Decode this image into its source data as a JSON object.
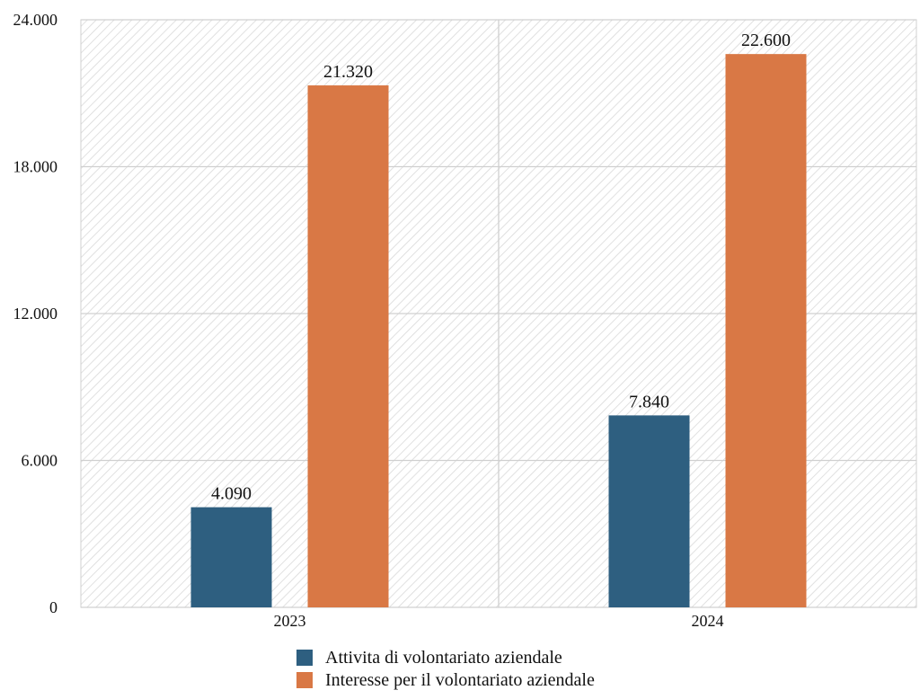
{
  "chart_data": {
    "type": "bar",
    "categories": [
      "2023",
      "2024"
    ],
    "series": [
      {
        "name": "Attivita di volontariato aziendale",
        "values": [
          4090,
          7840
        ],
        "labels": [
          "4.090",
          "7.840"
        ],
        "color": "#2e5f80"
      },
      {
        "name": "Interesse per il volontariato aziendale",
        "values": [
          21320,
          22600
        ],
        "labels": [
          "21.320",
          "22.600"
        ],
        "color": "#d97845"
      }
    ],
    "title": "",
    "xlabel": "",
    "ylabel": "",
    "ylim": [
      0,
      24000
    ],
    "yticks": [
      0,
      6000,
      12000,
      18000,
      24000
    ],
    "ytick_labels": [
      "0",
      "6.000",
      "12.000",
      "18.000",
      "24.000"
    ],
    "grid": true,
    "legend": "bottom"
  }
}
